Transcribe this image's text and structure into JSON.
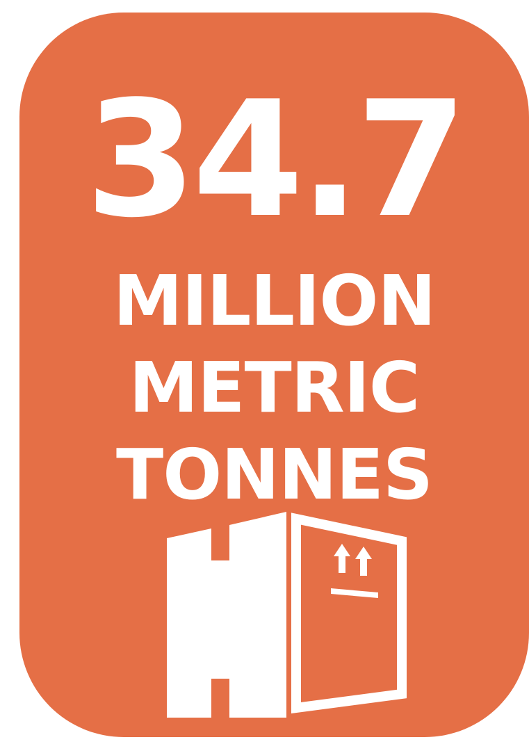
{
  "stat": {
    "number": "34.7",
    "line1": "MILLION",
    "line2": "METRIC",
    "line3": "TONNES"
  },
  "icon": {
    "name": "cardboard-box-icon"
  },
  "colors": {
    "card_background": "#e56f46",
    "text": "#ffffff",
    "page_background": "#ffffff"
  }
}
